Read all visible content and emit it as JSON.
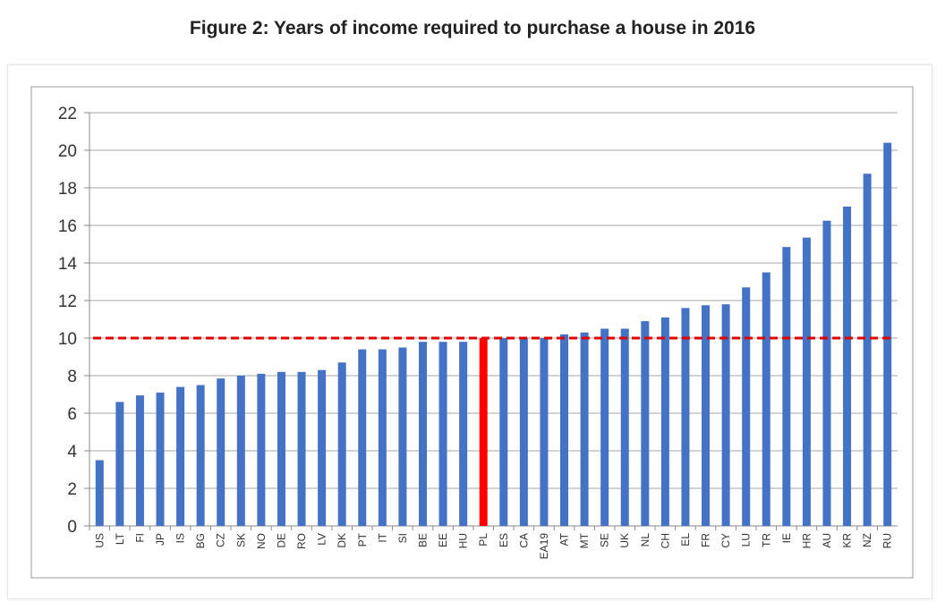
{
  "chart_data": {
    "type": "bar",
    "title": "Figure 2: Years of income required to purchase a house in 2016",
    "xlabel": "",
    "ylabel": "",
    "ylim": [
      0,
      22
    ],
    "yticks": [
      0,
      2,
      4,
      6,
      8,
      10,
      12,
      14,
      16,
      18,
      20,
      22
    ],
    "grid": true,
    "categories": [
      "US",
      "LT",
      "FI",
      "JP",
      "IS",
      "BG",
      "CZ",
      "SK",
      "NO",
      "DE",
      "RO",
      "LV",
      "DK",
      "PT",
      "IT",
      "SI",
      "BE",
      "EE",
      "HU",
      "PL",
      "ES",
      "CA",
      "EA19",
      "AT",
      "MT",
      "SE",
      "UK",
      "NL",
      "CH",
      "EL",
      "FR",
      "CY",
      "LU",
      "TR",
      "IE",
      "HR",
      "AU",
      "KR",
      "NZ",
      "RU"
    ],
    "values": [
      3.5,
      6.6,
      6.95,
      7.1,
      7.4,
      7.5,
      7.85,
      8.0,
      8.1,
      8.2,
      8.2,
      8.3,
      8.7,
      9.4,
      9.4,
      9.5,
      9.8,
      9.8,
      9.8,
      10.0,
      10.0,
      10.0,
      10.0,
      10.2,
      10.3,
      10.5,
      10.5,
      10.9,
      11.1,
      11.6,
      11.75,
      11.8,
      12.7,
      13.5,
      14.85,
      15.35,
      16.25,
      17.0,
      18.75,
      20.4
    ],
    "highlight": "PL",
    "reference_line": 10,
    "colors": {
      "bar": "#4472C4",
      "highlight": "#FF0000",
      "reference": "#E00000",
      "grid": "#A6A6A6"
    }
  }
}
